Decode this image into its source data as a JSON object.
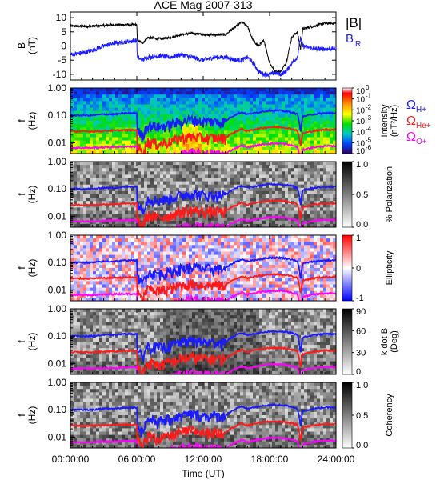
{
  "figure": {
    "title": "ACE Mag 2007-313",
    "xlabel": "Time (UT)"
  },
  "chart_data": [
    {
      "panel": "magnetic-field",
      "type": "line",
      "ylabel": [
        "B",
        "(nT)"
      ],
      "yticks": [
        "10",
        "5",
        "0",
        "-5",
        "-10"
      ],
      "yticks_values": [
        10,
        5,
        0,
        -5,
        -10
      ],
      "ylim": [
        -12,
        12
      ],
      "legend_position": "right",
      "series": [
        {
          "name": "|B|",
          "color": "#000000",
          "x": [
            0,
            1,
            2,
            3,
            4,
            5,
            6,
            6.05,
            6.5,
            7,
            8,
            9,
            10,
            11,
            12,
            13,
            14,
            15,
            15.5,
            16,
            16.5,
            17,
            17.5,
            18,
            18.5,
            19,
            19.5,
            20,
            20.5,
            20.8,
            21,
            22,
            23,
            24
          ],
          "y": [
            7,
            7,
            7,
            7.2,
            7.5,
            7.5,
            7.5,
            2,
            1,
            3,
            2.5,
            3,
            4,
            4.5,
            4,
            4,
            4,
            7,
            8.5,
            7,
            2,
            0,
            2,
            -6,
            -9,
            -9,
            -6,
            3,
            5,
            -1,
            6,
            7,
            8,
            8
          ]
        },
        {
          "name": "B_R",
          "label_text": "B",
          "label_sub": "R",
          "color": "#1a1aff",
          "x": [
            0,
            1,
            2,
            3,
            4,
            5,
            6,
            6.05,
            6.5,
            7,
            8,
            9,
            10,
            11,
            12,
            13,
            14,
            15,
            15.5,
            16,
            16.5,
            17,
            17.5,
            18,
            18.5,
            19,
            19.5,
            20,
            20.5,
            20.8,
            21,
            22,
            23,
            24
          ],
          "y": [
            -3,
            -2.5,
            -1.5,
            0,
            1,
            1.5,
            2,
            -4,
            -5,
            -4,
            -3.5,
            -4,
            -3,
            -4,
            -5,
            -4,
            -4,
            -5,
            -5,
            -4,
            -6,
            -9,
            -10,
            -10,
            -9.5,
            -10,
            -9,
            -6,
            -4,
            3,
            0,
            -1,
            -1,
            -1
          ]
        }
      ]
    },
    {
      "panel": "intensity",
      "type": "heatmap",
      "ylabel": [
        "f",
        "(Hz)"
      ],
      "yticks": [
        "1.00",
        "0.10",
        "0.01"
      ],
      "yticks_values": [
        1.0,
        0.1,
        0.01
      ],
      "ylim": [
        0.004,
        1.0
      ],
      "yscale": "log",
      "colorbar": {
        "label": [
          "Intensity",
          "(nT²/Hz)"
        ],
        "ticks": [
          "10",
          "10",
          "10",
          "10",
          "10",
          "10",
          "10"
        ],
        "tick_exponents": [
          "0",
          "-1",
          "-2",
          "-3",
          "-4",
          "-5",
          "-6"
        ],
        "tick_values": [
          1,
          0.1,
          0.01,
          0.001,
          0.0001,
          1e-05,
          1e-06
        ],
        "colormap": "rainbow",
        "scale": "log",
        "range": [
          1e-06,
          1
        ]
      },
      "legend": [
        {
          "text": "Ω",
          "sub": "H+",
          "color": "#1a1aff"
        },
        {
          "text": "Ω",
          "sub": "He+",
          "color": "#ff1a1a"
        },
        {
          "text": "Ω",
          "sub": "O+",
          "color": "#ff00ff"
        }
      ]
    },
    {
      "panel": "polarization",
      "type": "heatmap",
      "ylabel": [
        "f",
        "(Hz)"
      ],
      "yticks": [
        "1.00",
        "0.10",
        "0.01"
      ],
      "yticks_values": [
        1.0,
        0.1,
        0.01
      ],
      "ylim": [
        0.004,
        1.0
      ],
      "yscale": "log",
      "colorbar": {
        "label": [
          "% Polarization"
        ],
        "ticks": [
          "1.0",
          "0.5",
          "0.0"
        ],
        "tick_values": [
          1.0,
          0.5,
          0.0
        ],
        "colormap": "gray",
        "range": [
          0,
          1
        ]
      }
    },
    {
      "panel": "ellipticity",
      "type": "heatmap",
      "ylabel": [
        "f",
        "(Hz)"
      ],
      "yticks": [
        "1.00",
        "0.10",
        "0.01"
      ],
      "yticks_values": [
        1.0,
        0.1,
        0.01
      ],
      "ylim": [
        0.004,
        1.0
      ],
      "yscale": "log",
      "colorbar": {
        "label": [
          "Ellipticity"
        ],
        "ticks": [
          "1",
          "0",
          "-1"
        ],
        "tick_values": [
          1,
          0,
          -1
        ],
        "colormap": "blue-white-red",
        "range": [
          -1,
          1
        ]
      }
    },
    {
      "panel": "k-dot-b",
      "type": "heatmap",
      "ylabel": [
        "f",
        "(Hz)"
      ],
      "yticks": [
        "1.00",
        "0.10",
        "0.01"
      ],
      "yticks_values": [
        1.0,
        0.1,
        0.01
      ],
      "ylim": [
        0.004,
        1.0
      ],
      "yscale": "log",
      "colorbar": {
        "label": [
          "k dot B",
          "(Deg)"
        ],
        "ticks": [
          "90",
          "60",
          "30",
          "0"
        ],
        "tick_values": [
          90,
          60,
          30,
          0
        ],
        "colormap": "gray",
        "range": [
          0,
          90
        ]
      }
    },
    {
      "panel": "coherency",
      "type": "heatmap",
      "ylabel": [
        "f",
        "(Hz)"
      ],
      "yticks": [
        "1.00",
        "0.10",
        "0.01"
      ],
      "yticks_values": [
        1.0,
        0.1,
        0.01
      ],
      "ylim": [
        0.004,
        1.0
      ],
      "yscale": "log",
      "colorbar": {
        "label": [
          "Coherency"
        ],
        "ticks": [
          "1.0",
          "0.5",
          "0.0"
        ],
        "tick_values": [
          1.0,
          0.5,
          0.0
        ],
        "colormap": "gray",
        "range": [
          0,
          1
        ]
      }
    }
  ],
  "gyrofrequency_curves": {
    "x": [
      0,
      1,
      2,
      3,
      4,
      5,
      6,
      6.05,
      6.5,
      7,
      8,
      9,
      10,
      11,
      12,
      13,
      14,
      15,
      15.5,
      16,
      16.5,
      17,
      17.5,
      18,
      18.5,
      19,
      19.5,
      20,
      20.5,
      20.8,
      21,
      22,
      23,
      24
    ],
    "series": [
      {
        "name": "Ω_H+",
        "color": "#1a1aff",
        "y": [
          0.1,
          0.1,
          0.1,
          0.11,
          0.11,
          0.12,
          0.12,
          0.03,
          0.015,
          0.045,
          0.038,
          0.045,
          0.06,
          0.07,
          0.06,
          0.06,
          0.06,
          0.11,
          0.13,
          0.11,
          0.12,
          0.13,
          0.14,
          0.15,
          0.15,
          0.15,
          0.14,
          0.13,
          0.11,
          0.02,
          0.09,
          0.11,
          0.12,
          0.12
        ]
      },
      {
        "name": "Ω_He+",
        "color": "#ff1a1a",
        "y": [
          0.026,
          0.026,
          0.026,
          0.027,
          0.028,
          0.029,
          0.029,
          0.008,
          0.004,
          0.011,
          0.009,
          0.011,
          0.015,
          0.017,
          0.015,
          0.015,
          0.015,
          0.026,
          0.032,
          0.026,
          0.03,
          0.033,
          0.035,
          0.037,
          0.037,
          0.037,
          0.035,
          0.032,
          0.028,
          0.006,
          0.022,
          0.027,
          0.03,
          0.03
        ]
      },
      {
        "name": "Ω_O+",
        "color": "#ff00ff",
        "y": [
          0.0065,
          0.0065,
          0.0065,
          0.0068,
          0.007,
          0.0072,
          0.0072,
          0.002,
          0.001,
          0.0028,
          0.0024,
          0.0028,
          0.0038,
          0.0043,
          0.0038,
          0.0038,
          0.0038,
          0.0066,
          0.008,
          0.0066,
          0.0075,
          0.0082,
          0.0088,
          0.0093,
          0.0093,
          0.0093,
          0.0088,
          0.008,
          0.007,
          0.0015,
          0.0055,
          0.0068,
          0.0075,
          0.0075
        ]
      }
    ]
  },
  "x_axis": {
    "range": [
      0,
      24
    ],
    "ticks": [
      "00:00:00",
      "06:00:00",
      "12:00:00",
      "18:00:00",
      "24:00:00"
    ],
    "tick_values": [
      0,
      6,
      12,
      18,
      24
    ]
  }
}
